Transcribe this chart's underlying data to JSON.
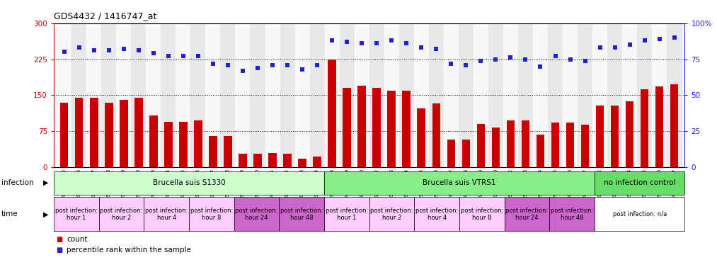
{
  "title": "GDS4432 / 1416747_at",
  "samples": [
    "GSM528195",
    "GSM528196",
    "GSM528197",
    "GSM528198",
    "GSM528199",
    "GSM528200",
    "GSM528203",
    "GSM528204",
    "GSM528205",
    "GSM528206",
    "GSM528207",
    "GSM528208",
    "GSM528209",
    "GSM528210",
    "GSM528211",
    "GSM528212",
    "GSM528213",
    "GSM528214",
    "GSM528218",
    "GSM528219",
    "GSM528220",
    "GSM528222",
    "GSM528223",
    "GSM528224",
    "GSM528225",
    "GSM528226",
    "GSM528227",
    "GSM528228",
    "GSM528229",
    "GSM528230",
    "GSM528232",
    "GSM528233",
    "GSM528234",
    "GSM528235",
    "GSM528236",
    "GSM528237",
    "GSM528192",
    "GSM528193",
    "GSM528194",
    "GSM528215",
    "GSM528216",
    "GSM528217"
  ],
  "bar_values": [
    135,
    145,
    145,
    135,
    140,
    145,
    108,
    95,
    95,
    97,
    65,
    65,
    28,
    28,
    30,
    28,
    18,
    22,
    225,
    165,
    170,
    165,
    160,
    160,
    123,
    133,
    58,
    58,
    90,
    83,
    98,
    98,
    68,
    93,
    93,
    88,
    128,
    128,
    138,
    163,
    168,
    173
  ],
  "dot_values_pct": [
    80,
    83,
    81,
    81,
    82,
    81,
    79,
    77,
    77,
    77,
    72,
    71,
    67,
    69,
    71,
    71,
    68,
    71,
    88,
    87,
    86,
    86,
    88,
    86,
    83,
    82,
    72,
    71,
    74,
    75,
    76,
    75,
    70,
    77,
    75,
    74,
    83,
    83,
    85,
    88,
    89,
    90
  ],
  "bar_color": "#cc0000",
  "dot_color": "#2222cc",
  "ylim_left": [
    0,
    300
  ],
  "ylim_right": [
    0,
    100
  ],
  "yticks_left": [
    0,
    75,
    150,
    225,
    300
  ],
  "yticks_right": [
    0,
    25,
    50,
    75,
    100
  ],
  "hlines": [
    75,
    150,
    225
  ],
  "inf_groups": [
    {
      "label": "Brucella suis S1330",
      "start": 0,
      "end": 18,
      "color": "#ccffcc"
    },
    {
      "label": "Brucella suis VTRS1",
      "start": 18,
      "end": 36,
      "color": "#88ee88"
    },
    {
      "label": "no infection control",
      "start": 36,
      "end": 42,
      "color": "#66dd66"
    }
  ],
  "time_groups": [
    {
      "label": "post infection:\nhour 1",
      "start": 0,
      "end": 3,
      "color": "#ffccff"
    },
    {
      "label": "post infection:\nhour 2",
      "start": 3,
      "end": 6,
      "color": "#ffccff"
    },
    {
      "label": "post infection:\nhour 4",
      "start": 6,
      "end": 9,
      "color": "#ffccff"
    },
    {
      "label": "post infection:\nhour 8",
      "start": 9,
      "end": 12,
      "color": "#ffccff"
    },
    {
      "label": "post infection:\nhour 24",
      "start": 12,
      "end": 15,
      "color": "#cc66cc"
    },
    {
      "label": "post infection:\nhour 48",
      "start": 15,
      "end": 18,
      "color": "#cc66cc"
    },
    {
      "label": "post infection:\nhour 1",
      "start": 18,
      "end": 21,
      "color": "#ffccff"
    },
    {
      "label": "post infection:\nhour 2",
      "start": 21,
      "end": 24,
      "color": "#ffccff"
    },
    {
      "label": "post infection:\nhour 4",
      "start": 24,
      "end": 27,
      "color": "#ffccff"
    },
    {
      "label": "post infection:\nhour 8",
      "start": 27,
      "end": 30,
      "color": "#ffccff"
    },
    {
      "label": "post infection:\nhour 24",
      "start": 30,
      "end": 33,
      "color": "#cc66cc"
    },
    {
      "label": "post infection:\nhour 48",
      "start": 33,
      "end": 36,
      "color": "#cc66cc"
    },
    {
      "label": "post infection: n/a",
      "start": 36,
      "end": 42,
      "color": "#ffffff"
    }
  ],
  "legend_count_color": "#cc0000",
  "legend_dot_color": "#2222cc",
  "bg_color": "#ffffff",
  "left_axis_color": "#cc0000",
  "right_axis_color": "#2222cc"
}
